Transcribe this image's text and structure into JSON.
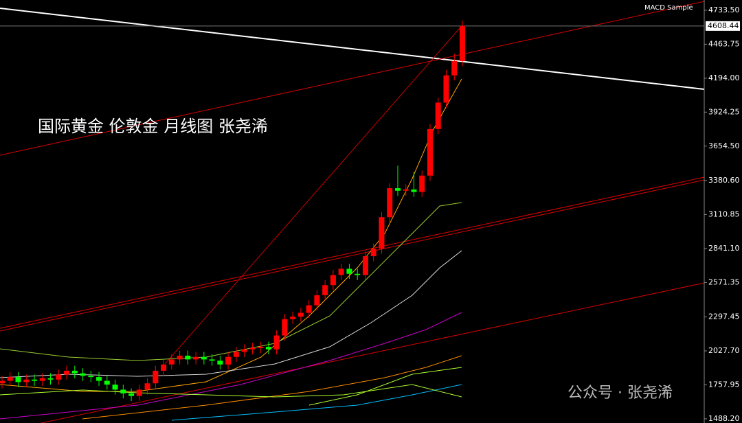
{
  "chart_data": {
    "type": "candlestick",
    "title": "国际黄金 伦敦金 月线图 张尧浠",
    "indicator_label": "MACD Sample",
    "watermark": "公众号 · 张尧浠",
    "up_color": "#ff0000",
    "down_color": "#00ff00",
    "open": [
      1770,
      1790,
      1820,
      1780,
      1800,
      1790,
      1810,
      1800,
      1840,
      1870,
      1850,
      1830,
      1820,
      1790,
      1760,
      1720,
      1690,
      1670,
      1720,
      1770,
      1870,
      1920,
      1960,
      1990,
      1960,
      1980,
      1960,
      1950,
      1920,
      1980,
      2020,
      2040,
      2050,
      2060,
      2040,
      2150,
      2280,
      2300,
      2330,
      2390,
      2470,
      2550,
      2630,
      2680,
      2640,
      2630,
      2780,
      2840,
      3090,
      3320,
      3300,
      3310,
      3290,
      3420,
      3790,
      4000,
      4216,
      4330
    ],
    "high": [
      1830,
      1860,
      1860,
      1840,
      1840,
      1850,
      1850,
      1880,
      1910,
      1910,
      1890,
      1870,
      1860,
      1830,
      1800,
      1760,
      1730,
      1760,
      1810,
      1910,
      1960,
      2000,
      2030,
      2030,
      2020,
      2020,
      2000,
      1990,
      2020,
      2060,
      2080,
      2090,
      2100,
      2100,
      2190,
      2320,
      2340,
      2370,
      2430,
      2510,
      2590,
      2670,
      2720,
      2720,
      2680,
      2820,
      2880,
      3130,
      3360,
      3500,
      3350,
      3450,
      3460,
      3830,
      4040,
      4260,
      4390,
      4650
    ],
    "low": [
      1730,
      1750,
      1740,
      1740,
      1750,
      1750,
      1760,
      1760,
      1800,
      1810,
      1790,
      1780,
      1750,
      1720,
      1680,
      1650,
      1630,
      1630,
      1680,
      1730,
      1830,
      1880,
      1920,
      1920,
      1920,
      1920,
      1910,
      1880,
      1880,
      1940,
      1980,
      2000,
      2010,
      2000,
      2000,
      2110,
      2240,
      2260,
      2290,
      2350,
      2430,
      2510,
      2590,
      2600,
      2590,
      2590,
      2740,
      2800,
      3050,
      3260,
      3260,
      3250,
      3250,
      3380,
      3750,
      3960,
      4176,
      4290
    ],
    "close": [
      1790,
      1820,
      1780,
      1800,
      1790,
      1810,
      1800,
      1840,
      1870,
      1850,
      1830,
      1820,
      1790,
      1760,
      1720,
      1690,
      1670,
      1720,
      1770,
      1870,
      1920,
      1960,
      1990,
      1960,
      1980,
      1960,
      1950,
      1920,
      1980,
      2020,
      2040,
      2050,
      2060,
      2040,
      2150,
      2280,
      2300,
      2330,
      2390,
      2470,
      2550,
      2630,
      2680,
      2640,
      2630,
      2780,
      2840,
      3090,
      3320,
      3300,
      3310,
      3290,
      3420,
      3790,
      4000,
      4216,
      4330,
      4608.44
    ],
    "current_price": 4608.44,
    "ylim": [
      1455,
      4815
    ],
    "yticks": [
      {
        "value": 4733.5,
        "label": "4733.50"
      },
      {
        "value": 4463.75,
        "label": "4463.75"
      },
      {
        "value": 4194,
        "label": "4194.00"
      },
      {
        "value": 3924.25,
        "label": "3924.25"
      },
      {
        "value": 3654.5,
        "label": "3654.50"
      },
      {
        "value": 3380.6,
        "label": "3380.60"
      },
      {
        "value": 3110.85,
        "label": "3110.85"
      },
      {
        "value": 2841.1,
        "label": "2841.10"
      },
      {
        "value": 2571.35,
        "label": "2571.35"
      },
      {
        "value": 2297.45,
        "label": "2297.45"
      },
      {
        "value": 2027.7,
        "label": "2027.70"
      },
      {
        "value": 1757.95,
        "label": "1757.95"
      },
      {
        "value": 1488.2,
        "label": "1488.20"
      }
    ]
  }
}
